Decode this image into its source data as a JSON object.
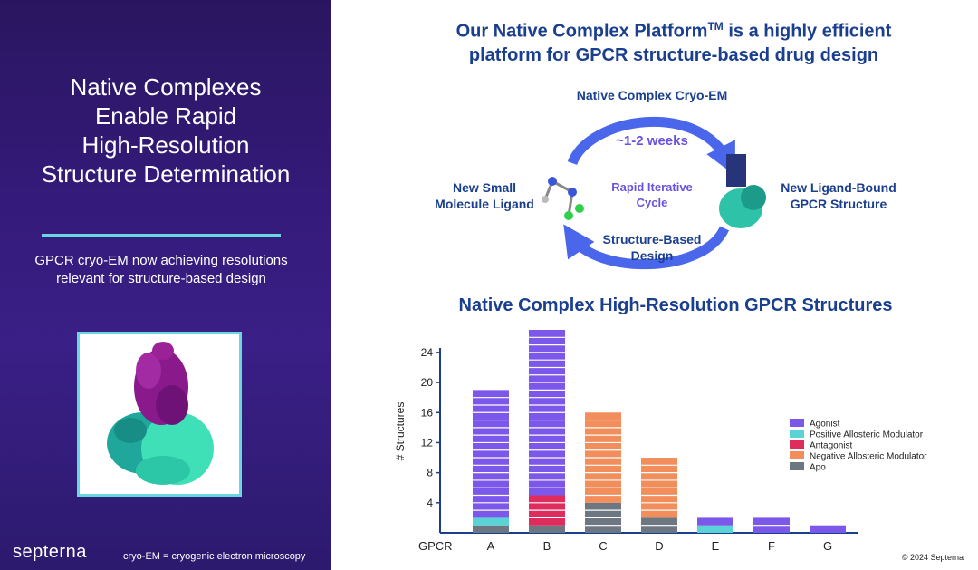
{
  "left": {
    "title_lines": [
      "Native Complexes",
      "Enable Rapid",
      "High-Resolution",
      "Structure Determination"
    ],
    "subtitle_lines": [
      "GPCR cryo-EM now achieving resolutions",
      "relevant for structure-based design"
    ],
    "brand": "septerna",
    "footnote": "cryo-EM = cryogenic electron microscopy"
  },
  "headline": {
    "line1": "Our Native Complex Platform",
    "tm": "TM",
    "line1_rest": " is a highly efficient",
    "line2": "platform for GPCR structure-based drug design"
  },
  "cycle": {
    "top": "Native Complex Cryo-EM",
    "duration": "~1-2 weeks",
    "center": [
      "Rapid Iterative",
      "Cycle"
    ],
    "left": [
      "New Small",
      "Molecule Ligand"
    ],
    "right": [
      "New Ligand-Bound",
      "GPCR Structure"
    ],
    "bottom": [
      "Structure-Based",
      "Design"
    ]
  },
  "chart_data": {
    "type": "bar",
    "stacked": true,
    "title": "Native Complex High-Resolution GPCR Structures",
    "xlabel": "GPCR",
    "ylabel": "# Structures",
    "ylim": [
      0,
      27
    ],
    "yticks": [
      4,
      8,
      12,
      16,
      20,
      24
    ],
    "categories": [
      "A",
      "B",
      "C",
      "D",
      "E",
      "F",
      "G"
    ],
    "series": [
      {
        "name": "Apo",
        "color": "#6d7781",
        "values": [
          1,
          1,
          4,
          2,
          0,
          0,
          0
        ]
      },
      {
        "name": "Negative Allosteric Modulator",
        "color": "#f28e5b",
        "values": [
          0,
          0,
          12,
          8,
          0,
          0,
          0
        ]
      },
      {
        "name": "Antagonist",
        "color": "#de2c5d",
        "values": [
          0,
          4,
          0,
          0,
          0,
          0,
          0
        ]
      },
      {
        "name": "Positive Allosteric Modulator",
        "color": "#5bd3d6",
        "values": [
          1,
          0,
          0,
          0,
          1,
          0,
          0
        ]
      },
      {
        "name": "Agonist",
        "color": "#7b57ea",
        "values": [
          17,
          22,
          0,
          0,
          1,
          2,
          1
        ]
      }
    ],
    "legend_order": [
      "Agonist",
      "Positive Allosteric Modulator",
      "Antagonist",
      "Negative Allosteric Modulator",
      "Apo"
    ],
    "legend_position": "right",
    "grid": false
  },
  "copyright": "© 2024 Septerna"
}
